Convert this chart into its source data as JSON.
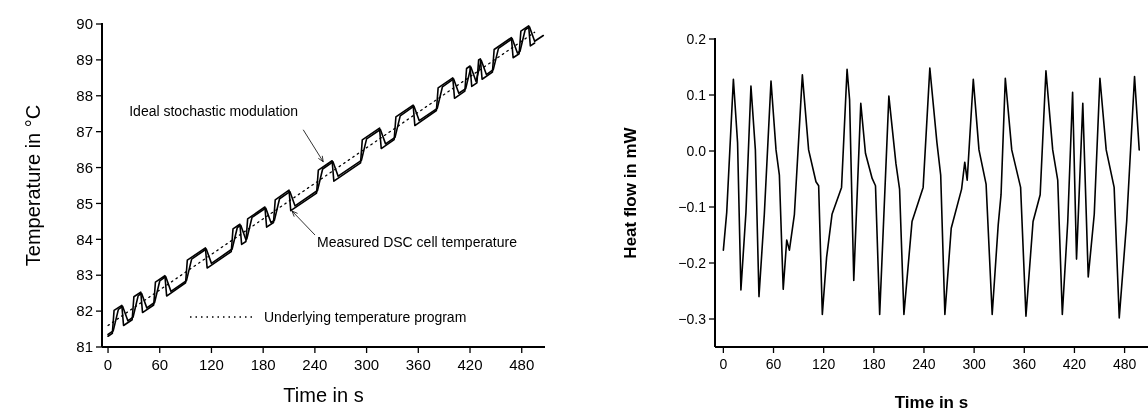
{
  "chart_data": [
    {
      "type": "line",
      "xlabel": "Time in s",
      "ylabel": "Temperature in °C",
      "xlim": [
        -7,
        507
      ],
      "ylim": [
        81,
        90
      ],
      "xticks": [
        0,
        60,
        120,
        180,
        240,
        300,
        360,
        420,
        480
      ],
      "yticks": [
        81,
        82,
        83,
        84,
        85,
        86,
        87,
        88,
        89,
        90
      ],
      "legend": "bottom right",
      "annotations": [
        {
          "text": "Ideal stochastic modulation",
          "x": 252,
          "y": 86.05
        },
        {
          "text": "Measured DSC cell temperature",
          "x": 210,
          "y": 84.9
        }
      ],
      "series": [
        {
          "name": "Underlying temperature program",
          "color": "#000000",
          "line_style": "dotted",
          "x": [
            0,
            495
          ],
          "values": [
            81.6,
            89.77
          ]
        },
        {
          "color": "#000000",
          "x": [
            0,
            5,
            7,
            16,
            18,
            28,
            30,
            38,
            40,
            53,
            55,
            66,
            68,
            90,
            92,
            113,
            115,
            143,
            145,
            153,
            155,
            160,
            162,
            182,
            184,
            192,
            194,
            210,
            212,
            242,
            244,
            260,
            262,
            293,
            295,
            315,
            317,
            332,
            334,
            354,
            356,
            381,
            383,
            400,
            402,
            414,
            416,
            420,
            422,
            428,
            430,
            432,
            434,
            446,
            448,
            468,
            470,
            477,
            479,
            488,
            490,
            495
          ],
          "values": [
            81.3,
            81.38,
            82.02,
            82.16,
            81.6,
            81.76,
            82.4,
            82.53,
            81.96,
            82.17,
            82.81,
            82.99,
            82.42,
            82.79,
            83.42,
            83.76,
            83.2,
            83.66,
            84.29,
            84.42,
            83.86,
            83.94,
            84.57,
            84.9,
            84.34,
            84.47,
            85.1,
            85.37,
            84.8,
            85.29,
            85.93,
            86.19,
            85.62,
            86.13,
            86.77,
            87.1,
            86.53,
            86.78,
            87.41,
            87.74,
            87.17,
            87.59,
            88.22,
            88.5,
            87.93,
            88.13,
            88.76,
            88.83,
            88.26,
            88.36,
            89.0,
            89.03,
            88.46,
            88.66,
            89.29,
            89.62,
            89.06,
            89.17,
            89.8,
            89.95,
            89.39,
            89.47
          ]
        },
        {
          "color": "#000000",
          "x": [
            0,
            6,
            12,
            17,
            23,
            29,
            35,
            39,
            45,
            54,
            60,
            67,
            73,
            91,
            97,
            114,
            120,
            144,
            150,
            154,
            160,
            161,
            167,
            183,
            189,
            193,
            199,
            211,
            217,
            243,
            249,
            261,
            267,
            294,
            300,
            316,
            322,
            333,
            339,
            355,
            361,
            382,
            388,
            401,
            407,
            415,
            421,
            427,
            433,
            439,
            447,
            453,
            469,
            475,
            478,
            484,
            489,
            495,
            505
          ],
          "values": [
            81.35,
            81.45,
            82.05,
            82.13,
            81.73,
            81.83,
            82.43,
            82.49,
            82.09,
            82.24,
            82.84,
            82.96,
            82.55,
            82.85,
            83.45,
            83.73,
            83.33,
            83.73,
            84.33,
            84.39,
            83.99,
            84.01,
            84.61,
            84.87,
            84.47,
            84.53,
            85.13,
            85.33,
            84.93,
            85.36,
            85.96,
            86.16,
            85.76,
            86.2,
            86.8,
            87.06,
            86.66,
            86.84,
            87.44,
            87.71,
            87.31,
            87.65,
            88.25,
            88.47,
            88.07,
            88.2,
            88.8,
            88.4,
            88.99,
            88.59,
            88.73,
            89.32,
            89.59,
            89.19,
            89.24,
            89.84,
            89.92,
            89.52,
            89.68
          ]
        }
      ]
    },
    {
      "type": "line",
      "xlabel": "Time in s",
      "ylabel": "Heat flow in mW",
      "xlim": [
        -10,
        508
      ],
      "ylim": [
        -0.35,
        0.2
      ],
      "xticks": [
        0,
        60,
        120,
        180,
        240,
        300,
        360,
        420,
        480
      ],
      "yticks": [
        {
          "value": -0.3,
          "label": "−0.3"
        },
        {
          "value": -0.2,
          "label": "−0.2"
        },
        {
          "value": -0.1,
          "label": "−0.1"
        },
        {
          "value": 0,
          "label": "0.0"
        },
        {
          "value": 0.1,
          "label": "0.1"
        },
        {
          "value": 0.2,
          "label": "0.2"
        }
      ],
      "series": [
        {
          "color": "#000000",
          "x": [
            0,
            4,
            12,
            17,
            21,
            27,
            33,
            38.3,
            42.6,
            49,
            57,
            63,
            67,
            71.6,
            75.8,
            79,
            85,
            94.5,
            102,
            110.8,
            114,
            118.4,
            123.5,
            130,
            141.4,
            148,
            151,
            156,
            164.4,
            170,
            178,
            182,
            187,
            198,
            206.5,
            210.8,
            216,
            225.7,
            239,
            247,
            255.5,
            260,
            265,
            272.6,
            285,
            288.8,
            291.7,
            299,
            305.8,
            314.3,
            321.6,
            328.8,
            332.2,
            337.3,
            345,
            355.6,
            362,
            370.5,
            379,
            385.9,
            394,
            400,
            405.5,
            412,
            417.8,
            422.5,
            430,
            436.5,
            443.7,
            450.5,
            458,
            467.5,
            473.6,
            482.5,
            491.9,
            497.5
          ],
          "values": [
            -0.177,
            -0.11,
            0.128,
            0.015,
            -0.248,
            -0.11,
            0.116,
            0.002,
            -0.26,
            -0.113,
            0.125,
            0.002,
            -0.043,
            -0.247,
            -0.159,
            -0.177,
            -0.113,
            0.136,
            0.002,
            -0.055,
            -0.062,
            -0.292,
            -0.19,
            -0.113,
            -0.065,
            0.146,
            0.092,
            -0.231,
            0.085,
            -0.004,
            -0.049,
            -0.062,
            -0.292,
            0.098,
            -0.023,
            -0.068,
            -0.292,
            -0.126,
            -0.065,
            0.148,
            0.015,
            -0.043,
            -0.292,
            -0.138,
            -0.068,
            -0.02,
            -0.052,
            0.128,
            0.002,
            -0.059,
            -0.292,
            -0.132,
            -0.078,
            0.13,
            0.002,
            -0.065,
            -0.295,
            -0.126,
            -0.078,
            0.143,
            0.002,
            -0.052,
            -0.292,
            -0.126,
            0.105,
            -0.193,
            0.085,
            -0.225,
            -0.113,
            0.13,
            0.002,
            -0.065,
            -0.298,
            -0.126,
            0.133,
            0.002
          ]
        }
      ]
    }
  ]
}
